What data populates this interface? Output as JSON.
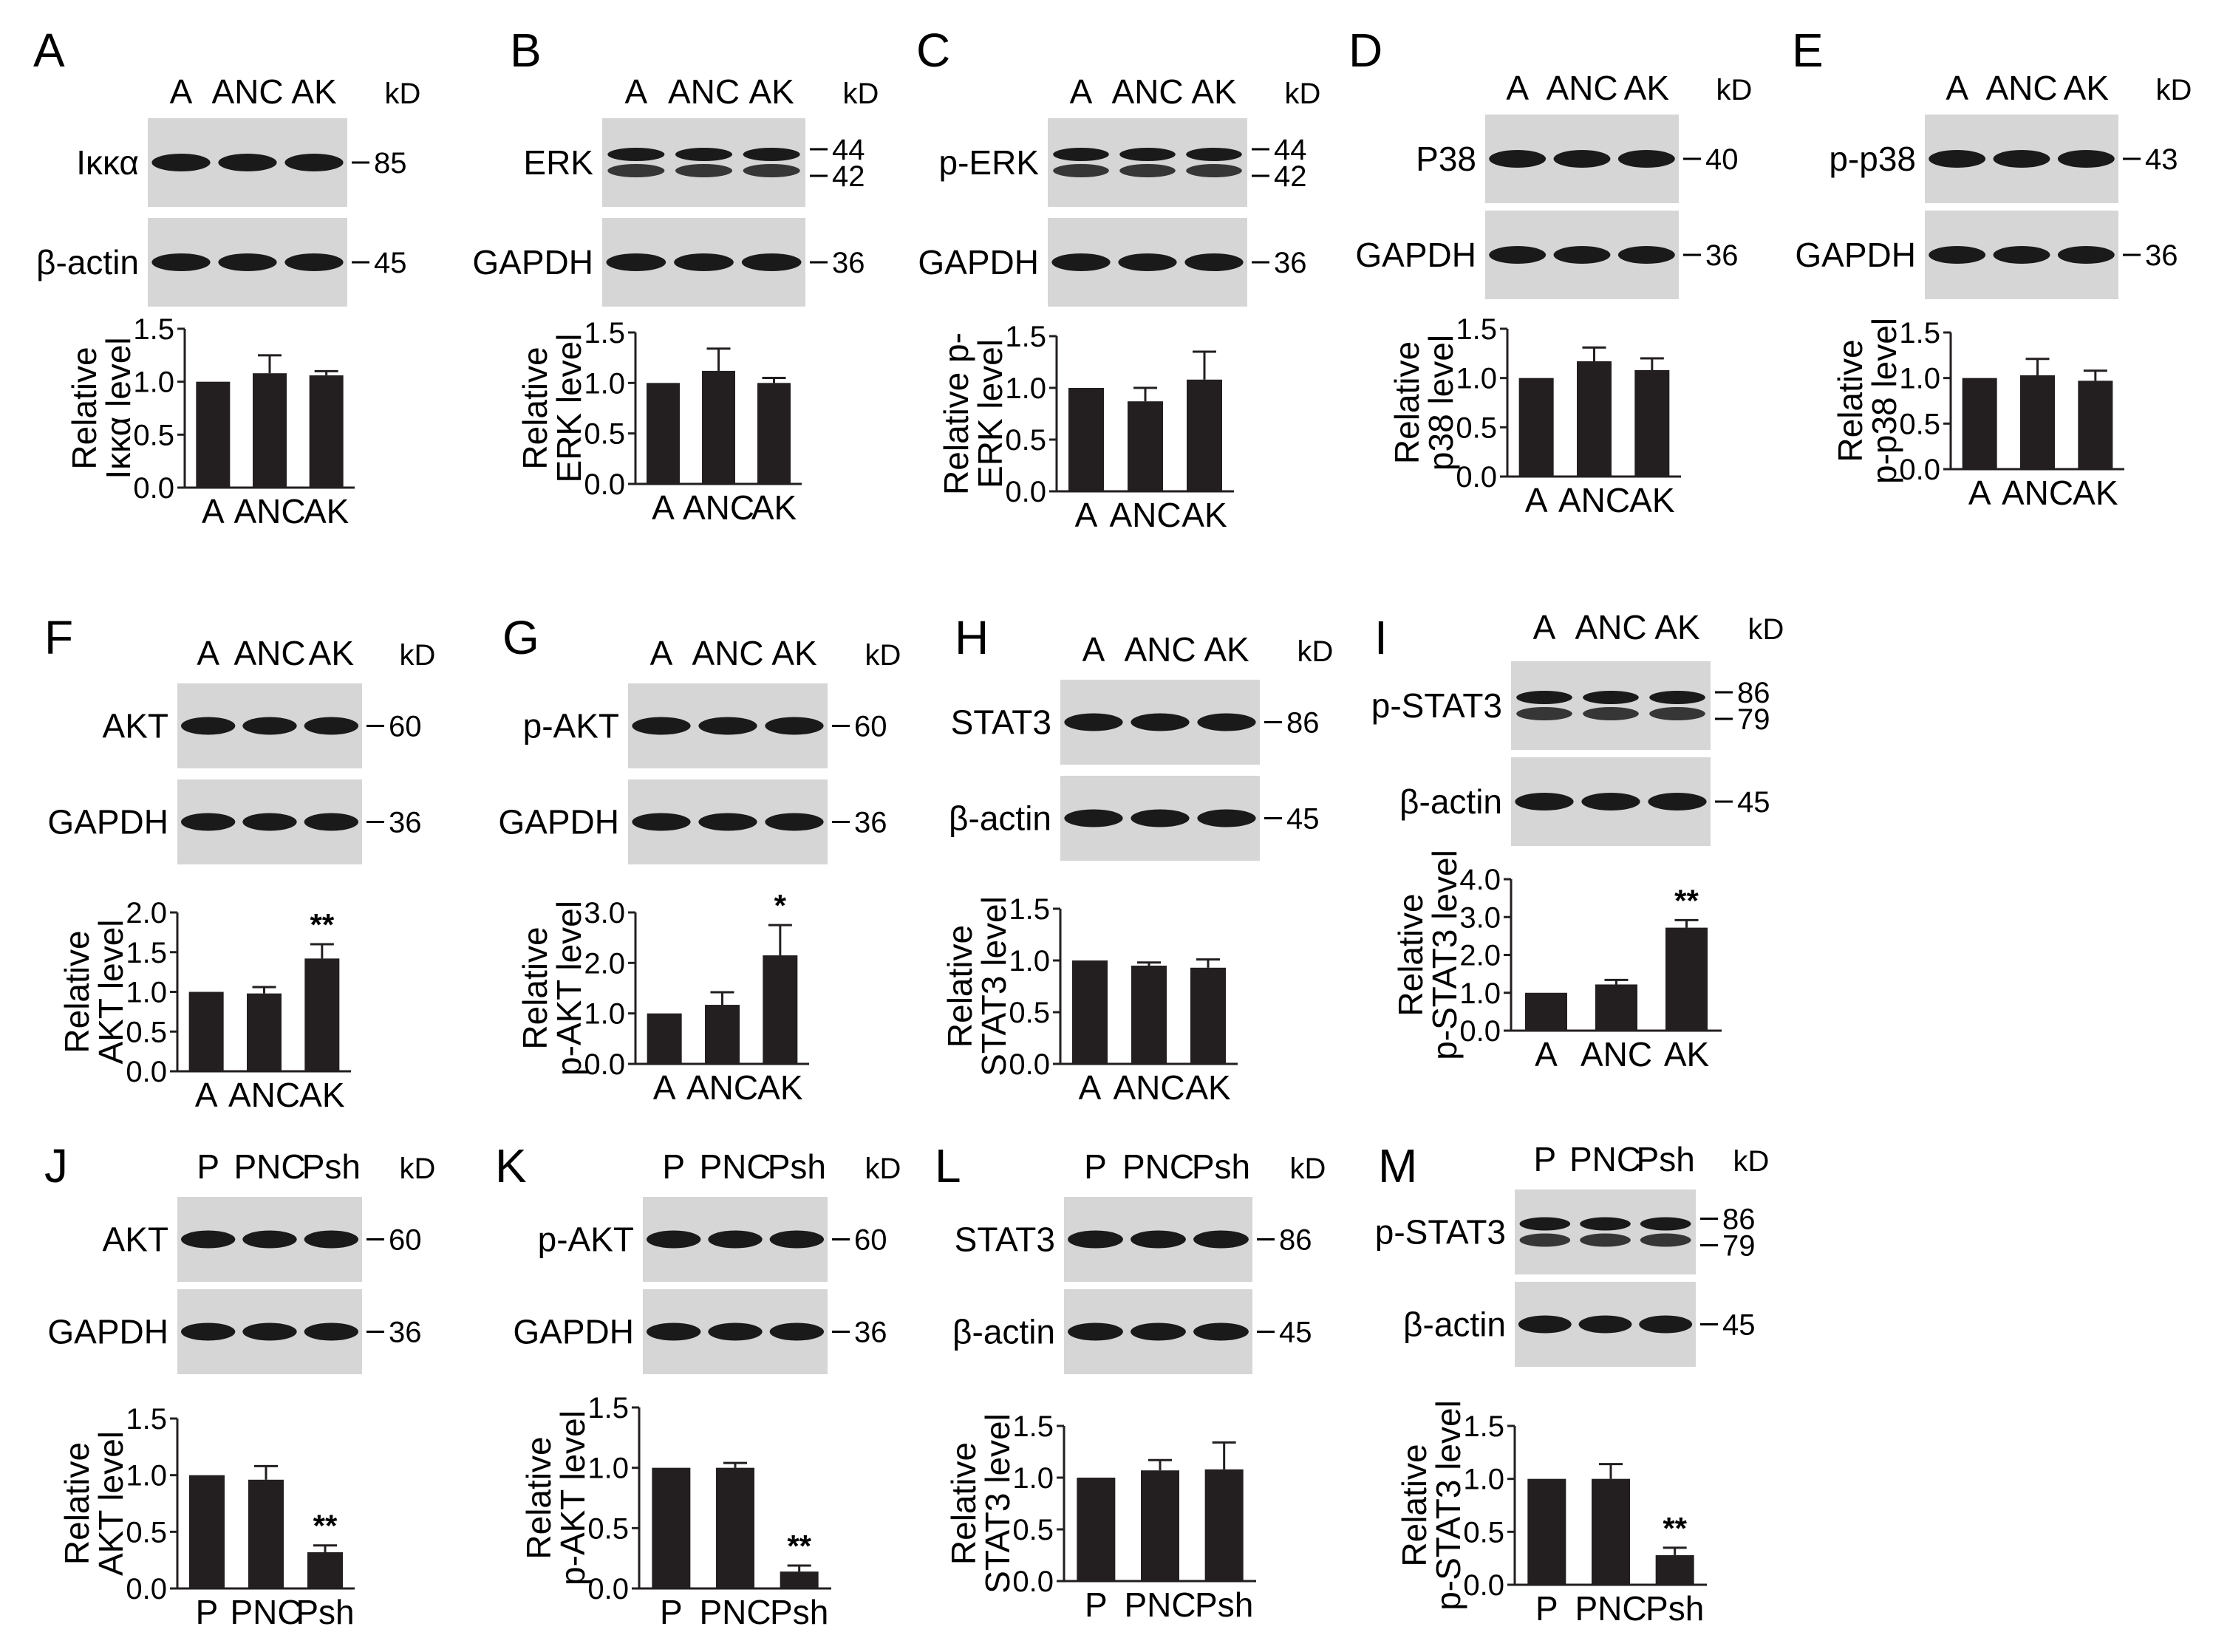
{
  "colors": {
    "bar": "#231f20",
    "axis": "#231f20",
    "blot_bg": "#d6d6d6",
    "band": "#1a1a1a"
  },
  "kd_label": "kD",
  "panels": [
    {
      "letter": "A",
      "lanes": [
        "A",
        "ANC",
        "AK"
      ],
      "blots": [
        {
          "protein": "Iκκα",
          "markers": [
            "85"
          ],
          "bands": 1
        },
        {
          "protein": "β-actin",
          "markers": [
            "45"
          ],
          "bands": 1
        }
      ]
    },
    {
      "letter": "B",
      "lanes": [
        "A",
        "ANC",
        "AK"
      ],
      "blots": [
        {
          "protein": "ERK",
          "markers": [
            "44",
            "42"
          ],
          "bands": 2
        },
        {
          "protein": "GAPDH",
          "markers": [
            "36"
          ],
          "bands": 1
        }
      ]
    },
    {
      "letter": "C",
      "lanes": [
        "A",
        "ANC",
        "AK"
      ],
      "blots": [
        {
          "protein": "p-ERK",
          "markers": [
            "44",
            "42"
          ],
          "bands": 2
        },
        {
          "protein": "GAPDH",
          "markers": [
            "36"
          ],
          "bands": 1
        }
      ]
    },
    {
      "letter": "D",
      "lanes": [
        "A",
        "ANC",
        "AK"
      ],
      "blots": [
        {
          "protein": "P38",
          "markers": [
            "40"
          ],
          "bands": 1
        },
        {
          "protein": "GAPDH",
          "markers": [
            "36"
          ],
          "bands": 1
        }
      ]
    },
    {
      "letter": "E",
      "lanes": [
        "A",
        "ANC",
        "AK"
      ],
      "blots": [
        {
          "protein": "p-p38",
          "markers": [
            "43"
          ],
          "bands": 1
        },
        {
          "protein": "GAPDH",
          "markers": [
            "36"
          ],
          "bands": 1
        }
      ]
    },
    {
      "letter": "F",
      "lanes": [
        "A",
        "ANC",
        "AK"
      ],
      "blots": [
        {
          "protein": "AKT",
          "markers": [
            "60"
          ],
          "bands": 1
        },
        {
          "protein": "GAPDH",
          "markers": [
            "36"
          ],
          "bands": 1
        }
      ]
    },
    {
      "letter": "G",
      "lanes": [
        "A",
        "ANC",
        "AK"
      ],
      "blots": [
        {
          "protein": "p-AKT",
          "markers": [
            "60"
          ],
          "bands": 1
        },
        {
          "protein": "GAPDH",
          "markers": [
            "36"
          ],
          "bands": 1
        }
      ]
    },
    {
      "letter": "H",
      "lanes": [
        "A",
        "ANC",
        "AK"
      ],
      "blots": [
        {
          "protein": "STAT3",
          "markers": [
            "86"
          ],
          "bands": 1
        },
        {
          "protein": "β-actin",
          "markers": [
            "45"
          ],
          "bands": 1
        }
      ]
    },
    {
      "letter": "I",
      "lanes": [
        "A",
        "ANC",
        "AK"
      ],
      "blots": [
        {
          "protein": "p-STAT3",
          "markers": [
            "86",
            "79"
          ],
          "bands": 2
        },
        {
          "protein": "β-actin",
          "markers": [
            "45"
          ],
          "bands": 1
        }
      ]
    },
    {
      "letter": "J",
      "lanes": [
        "P",
        "PNC",
        "Psh"
      ],
      "blots": [
        {
          "protein": "AKT",
          "markers": [
            "60"
          ],
          "bands": 1
        },
        {
          "protein": "GAPDH",
          "markers": [
            "36"
          ],
          "bands": 1
        }
      ]
    },
    {
      "letter": "K",
      "lanes": [
        "P",
        "PNC",
        "Psh"
      ],
      "blots": [
        {
          "protein": "p-AKT",
          "markers": [
            "60"
          ],
          "bands": 1
        },
        {
          "protein": "GAPDH",
          "markers": [
            "36"
          ],
          "bands": 1
        }
      ]
    },
    {
      "letter": "L",
      "lanes": [
        "P",
        "PNC",
        "Psh"
      ],
      "blots": [
        {
          "protein": "STAT3",
          "markers": [
            "86"
          ],
          "bands": 1
        },
        {
          "protein": "β-actin",
          "markers": [
            "45"
          ],
          "bands": 1
        }
      ]
    },
    {
      "letter": "M",
      "lanes": [
        "P",
        "PNC",
        "Psh"
      ],
      "blots": [
        {
          "protein": "p-STAT3",
          "markers": [
            "86",
            "79"
          ],
          "bands": 2
        },
        {
          "protein": "β-actin",
          "markers": [
            "45"
          ],
          "bands": 1
        }
      ]
    }
  ],
  "chart_data": [
    {
      "panel": "A",
      "type": "bar",
      "categories": [
        "A",
        "ANC",
        "AK"
      ],
      "values": [
        1.0,
        1.08,
        1.06
      ],
      "errors": [
        0,
        0.17,
        0.04
      ],
      "ylabel": [
        "Relative",
        "Iκκα level"
      ],
      "ylim": [
        0,
        1.5
      ],
      "yticks": [
        "0.0",
        "0.5",
        "1.0",
        "1.5"
      ],
      "significance": [
        "",
        "",
        ""
      ]
    },
    {
      "panel": "B",
      "type": "bar",
      "categories": [
        "A",
        "ANC",
        "AK"
      ],
      "values": [
        1.0,
        1.12,
        1.0
      ],
      "errors": [
        0,
        0.22,
        0.05
      ],
      "ylabel": [
        "Relative",
        "ERK level"
      ],
      "ylim": [
        0,
        1.5
      ],
      "yticks": [
        "0.0",
        "0.5",
        "1.0",
        "1.5"
      ],
      "significance": [
        "",
        "",
        ""
      ]
    },
    {
      "panel": "C",
      "type": "bar",
      "categories": [
        "A",
        "ANC",
        "AK"
      ],
      "values": [
        1.0,
        0.87,
        1.08
      ],
      "errors": [
        0,
        0.13,
        0.27
      ],
      "ylabel": [
        "Relative p-",
        "ERK level"
      ],
      "ylim": [
        0,
        1.5
      ],
      "yticks": [
        "0.0",
        "0.5",
        "1.0",
        "1.5"
      ],
      "significance": [
        "",
        "",
        ""
      ]
    },
    {
      "panel": "D",
      "type": "bar",
      "categories": [
        "A",
        "ANC",
        "AK"
      ],
      "values": [
        1.0,
        1.17,
        1.08
      ],
      "errors": [
        0,
        0.14,
        0.12
      ],
      "ylabel": [
        "Relative",
        "p38 level"
      ],
      "ylim": [
        0,
        1.5
      ],
      "yticks": [
        "0.0",
        "0.5",
        "1.0",
        "1.5"
      ],
      "significance": [
        "",
        "",
        ""
      ]
    },
    {
      "panel": "E",
      "type": "bar",
      "categories": [
        "A",
        "ANC",
        "AK"
      ],
      "values": [
        1.0,
        1.03,
        0.97
      ],
      "errors": [
        0,
        0.18,
        0.11
      ],
      "ylabel": [
        "Relative",
        "p-p38 level"
      ],
      "ylim": [
        0,
        1.5
      ],
      "yticks": [
        "0.0",
        "0.5",
        "1.0",
        "1.5"
      ],
      "significance": [
        "",
        "",
        ""
      ]
    },
    {
      "panel": "F",
      "type": "bar",
      "categories": [
        "A",
        "ANC",
        "AK"
      ],
      "values": [
        1.0,
        0.98,
        1.42
      ],
      "errors": [
        0,
        0.08,
        0.18
      ],
      "ylabel": [
        "Relative",
        "AKT level"
      ],
      "ylim": [
        0,
        2.0
      ],
      "yticks": [
        "0.0",
        "0.5",
        "1.0",
        "1.5",
        "2.0"
      ],
      "significance": [
        "",
        "",
        "**"
      ]
    },
    {
      "panel": "G",
      "type": "bar",
      "categories": [
        "A",
        "ANC",
        "AK"
      ],
      "values": [
        1.0,
        1.17,
        2.15
      ],
      "errors": [
        0,
        0.25,
        0.6
      ],
      "ylabel": [
        "Relative",
        "p-AKT level"
      ],
      "ylim": [
        0,
        3.0
      ],
      "yticks": [
        "0.0",
        "1.0",
        "2.0",
        "3.0"
      ],
      "significance": [
        "",
        "",
        "*"
      ]
    },
    {
      "panel": "H",
      "type": "bar",
      "categories": [
        "A",
        "ANC",
        "AK"
      ],
      "values": [
        1.0,
        0.95,
        0.93
      ],
      "errors": [
        0,
        0.03,
        0.08
      ],
      "ylabel": [
        "Relative",
        "STAT3 level"
      ],
      "ylim": [
        0,
        1.5
      ],
      "yticks": [
        "0.0",
        "0.5",
        "1.0",
        "1.5"
      ],
      "significance": [
        "",
        "",
        ""
      ]
    },
    {
      "panel": "I",
      "type": "bar",
      "categories": [
        "A",
        "ANC",
        "AK"
      ],
      "values": [
        1.0,
        1.22,
        2.72
      ],
      "errors": [
        0,
        0.12,
        0.2
      ],
      "ylabel": [
        "Relative",
        "p-STAT3 level"
      ],
      "ylim": [
        0,
        4.0
      ],
      "yticks": [
        "0.0",
        "1.0",
        "2.0",
        "3.0",
        "4.0"
      ],
      "significance": [
        "",
        "",
        "**"
      ]
    },
    {
      "panel": "J",
      "type": "bar",
      "categories": [
        "P",
        "PNC",
        "Psh"
      ],
      "values": [
        1.0,
        0.96,
        0.32
      ],
      "errors": [
        0,
        0.12,
        0.06
      ],
      "ylabel": [
        "Relative",
        "AKT level"
      ],
      "ylim": [
        0,
        1.5
      ],
      "yticks": [
        "0.0",
        "0.5",
        "1.0",
        "1.5"
      ],
      "significance": [
        "",
        "",
        "**"
      ]
    },
    {
      "panel": "K",
      "type": "bar",
      "categories": [
        "P",
        "PNC",
        "Psh"
      ],
      "values": [
        1.0,
        1.0,
        0.14
      ],
      "errors": [
        0,
        0.04,
        0.05
      ],
      "ylabel": [
        "Relative",
        "p-AKT level"
      ],
      "ylim": [
        0,
        1.5
      ],
      "yticks": [
        "0.0",
        "0.5",
        "1.0",
        "1.5"
      ],
      "significance": [
        "",
        "",
        "**"
      ]
    },
    {
      "panel": "L",
      "type": "bar",
      "categories": [
        "P",
        "PNC",
        "Psh"
      ],
      "values": [
        1.0,
        1.07,
        1.08
      ],
      "errors": [
        0,
        0.1,
        0.26
      ],
      "ylabel": [
        "Relative",
        "STAT3 level"
      ],
      "ylim": [
        0,
        1.5
      ],
      "yticks": [
        "0.0",
        "0.5",
        "1.0",
        "1.5"
      ],
      "significance": [
        "",
        "",
        ""
      ]
    },
    {
      "panel": "M",
      "type": "bar",
      "categories": [
        "P",
        "PNC",
        "Psh"
      ],
      "values": [
        1.0,
        1.0,
        0.28
      ],
      "errors": [
        0,
        0.14,
        0.07
      ],
      "ylabel": [
        "Relative",
        "p-STAT3 level"
      ],
      "ylim": [
        0,
        1.5
      ],
      "yticks": [
        "0.0",
        "0.5",
        "1.0",
        "1.5"
      ],
      "significance": [
        "",
        "",
        "**"
      ]
    }
  ]
}
